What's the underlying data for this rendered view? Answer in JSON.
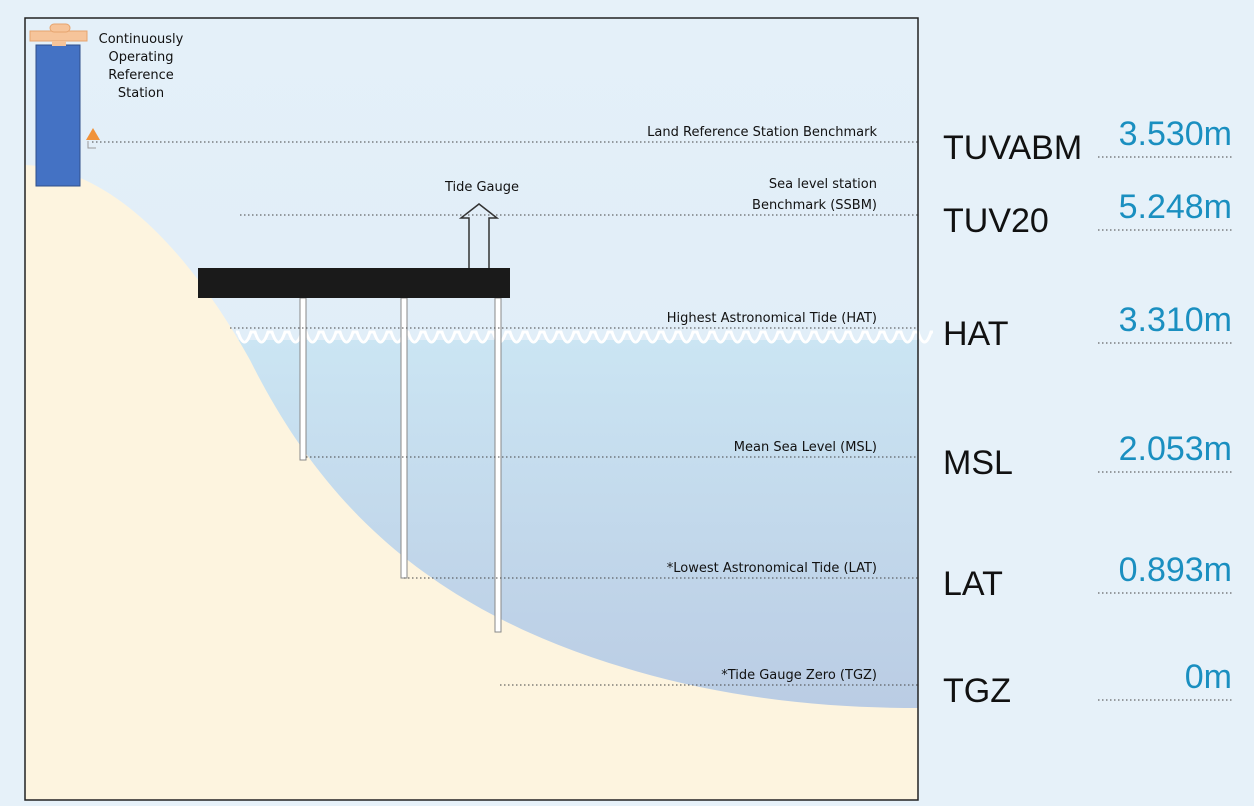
{
  "station": {
    "label_lines": [
      "Continuously",
      "Operating",
      "Reference",
      "Station"
    ]
  },
  "tide_gauge": {
    "label": "Tide Gauge"
  },
  "levels": [
    {
      "description": [
        "Land Reference Station Benchmark"
      ],
      "code": "TUVABM",
      "value": "3.530m"
    },
    {
      "description": [
        "Sea level station",
        "Benchmark (SSBM)"
      ],
      "code": "TUV20",
      "value": "5.248m"
    },
    {
      "description": [
        "Highest Astronomical Tide (HAT)"
      ],
      "code": "HAT",
      "value": "3.310m"
    },
    {
      "description": [
        "Mean Sea Level (MSL)"
      ],
      "code": "MSL",
      "value": "2.053m"
    },
    {
      "description": [
        "*Lowest Astronomical Tide (LAT)"
      ],
      "code": "LAT",
      "value": "0.893m"
    },
    {
      "description": [
        "*Tide Gauge Zero (TGZ)"
      ],
      "code": "TGZ",
      "value": "0m"
    }
  ]
}
